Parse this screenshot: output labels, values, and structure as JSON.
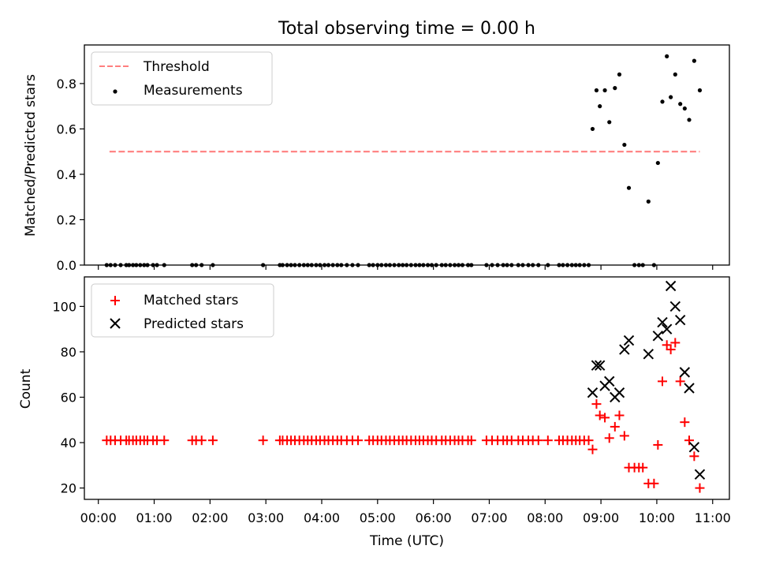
{
  "title": "Total observing time = 0.00 h",
  "chart_data": [
    {
      "type": "scatter",
      "title": "Total observing time = 0.00 h",
      "xlabel": "",
      "ylabel": "Matched/Predicted stars",
      "xlim": [
        -0.25,
        11.3
      ],
      "ylim": [
        0.0,
        0.97
      ],
      "yticks": [
        0.0,
        0.2,
        0.4,
        0.6,
        0.8
      ],
      "ytick_labels": [
        "0.0",
        "0.2",
        "0.4",
        "0.6",
        "0.8"
      ],
      "legend": "top-left",
      "series": [
        {
          "name": "Threshold",
          "kind": "dashed-line",
          "color": "#ff7f7f",
          "x": [
            0.2,
            10.77
          ],
          "y": [
            0.5,
            0.5
          ]
        },
        {
          "name": "Measurements",
          "kind": "dots",
          "color": "#000000",
          "x": [
            0.15,
            0.22,
            0.3,
            0.4,
            0.5,
            0.55,
            0.62,
            0.68,
            0.75,
            0.82,
            0.88,
            0.98,
            1.05,
            1.18,
            1.68,
            1.75,
            1.85,
            2.05,
            2.95,
            3.25,
            3.3,
            3.38,
            3.45,
            3.52,
            3.6,
            3.68,
            3.75,
            3.82,
            3.9,
            3.97,
            4.05,
            4.12,
            4.2,
            4.28,
            4.35,
            4.45,
            4.55,
            4.65,
            4.85,
            4.92,
            5.0,
            5.07,
            5.15,
            5.22,
            5.3,
            5.38,
            5.45,
            5.52,
            5.6,
            5.68,
            5.75,
            5.82,
            5.9,
            5.97,
            6.05,
            6.15,
            6.22,
            6.3,
            6.38,
            6.45,
            6.52,
            6.62,
            6.68,
            6.95,
            7.05,
            7.15,
            7.25,
            7.32,
            7.4,
            7.52,
            7.6,
            7.7,
            7.78,
            7.88,
            8.05,
            8.25,
            8.32,
            8.4,
            8.48,
            8.55,
            8.62,
            8.7,
            8.78,
            8.85,
            8.92,
            8.98,
            9.07,
            9.15,
            9.25,
            9.33,
            9.42,
            9.5,
            9.6,
            9.68,
            9.75,
            9.85,
            9.95,
            10.02,
            10.1,
            10.18,
            10.25,
            10.33,
            10.42,
            10.5,
            10.58,
            10.67,
            10.77
          ],
          "y": [
            0,
            0,
            0,
            0,
            0,
            0,
            0,
            0,
            0,
            0,
            0,
            0,
            0,
            0,
            0,
            0,
            0,
            0,
            0,
            0,
            0,
            0,
            0,
            0,
            0,
            0,
            0,
            0,
            0,
            0,
            0,
            0,
            0,
            0,
            0,
            0,
            0,
            0,
            0,
            0,
            0,
            0,
            0,
            0,
            0,
            0,
            0,
            0,
            0,
            0,
            0,
            0,
            0,
            0,
            0,
            0,
            0,
            0,
            0,
            0,
            0,
            0,
            0,
            0,
            0,
            0,
            0,
            0,
            0,
            0,
            0,
            0,
            0,
            0,
            0,
            0,
            0,
            0,
            0,
            0,
            0,
            0,
            0,
            0.6,
            0.77,
            0.7,
            0.77,
            0.63,
            0.78,
            0.84,
            0.53,
            0.34,
            0,
            0,
            0,
            0.28,
            0,
            0.45,
            0.72,
            0.92,
            0.74,
            0.84,
            0.71,
            0.69,
            0.64,
            0.9,
            0.77
          ]
        }
      ]
    },
    {
      "type": "scatter",
      "title": "",
      "xlabel": "Time (UTC)",
      "ylabel": "Count",
      "xlim": [
        -0.25,
        11.3
      ],
      "ylim": [
        15,
        113
      ],
      "yticks": [
        20,
        40,
        60,
        80,
        100
      ],
      "ytick_labels": [
        "20",
        "40",
        "60",
        "80",
        "100"
      ],
      "xticks": [
        0,
        1,
        2,
        3,
        4,
        5,
        6,
        7,
        8,
        9,
        10,
        11
      ],
      "xtick_labels": [
        "00:00",
        "01:00",
        "02:00",
        "03:00",
        "04:00",
        "05:00",
        "06:00",
        "07:00",
        "08:00",
        "09:00",
        "10:00",
        "11:00"
      ],
      "legend": "top-left",
      "series": [
        {
          "name": "Matched stars",
          "kind": "plus",
          "color": "#ff0000",
          "x": [
            0.15,
            0.22,
            0.3,
            0.4,
            0.5,
            0.55,
            0.62,
            0.68,
            0.75,
            0.82,
            0.88,
            0.98,
            1.05,
            1.18,
            1.68,
            1.75,
            1.85,
            2.05,
            2.95,
            3.25,
            3.3,
            3.38,
            3.45,
            3.52,
            3.6,
            3.68,
            3.75,
            3.82,
            3.9,
            3.97,
            4.05,
            4.12,
            4.2,
            4.28,
            4.35,
            4.45,
            4.55,
            4.65,
            4.85,
            4.92,
            5.0,
            5.07,
            5.15,
            5.22,
            5.3,
            5.38,
            5.45,
            5.52,
            5.6,
            5.68,
            5.75,
            5.82,
            5.9,
            5.97,
            6.05,
            6.15,
            6.22,
            6.3,
            6.38,
            6.45,
            6.52,
            6.62,
            6.68,
            6.95,
            7.05,
            7.15,
            7.25,
            7.32,
            7.4,
            7.52,
            7.6,
            7.7,
            7.78,
            7.88,
            8.05,
            8.25,
            8.32,
            8.4,
            8.48,
            8.55,
            8.62,
            8.7,
            8.78,
            8.85,
            8.92,
            8.98,
            9.07,
            9.15,
            9.25,
            9.33,
            9.42,
            9.5,
            9.6,
            9.68,
            9.75,
            9.85,
            9.95,
            10.02,
            10.1,
            10.18,
            10.25,
            10.33,
            10.42,
            10.5,
            10.58,
            10.67,
            10.77
          ],
          "y": [
            41,
            41,
            41,
            41,
            41,
            41,
            41,
            41,
            41,
            41,
            41,
            41,
            41,
            41,
            41,
            41,
            41,
            41,
            41,
            41,
            41,
            41,
            41,
            41,
            41,
            41,
            41,
            41,
            41,
            41,
            41,
            41,
            41,
            41,
            41,
            41,
            41,
            41,
            41,
            41,
            41,
            41,
            41,
            41,
            41,
            41,
            41,
            41,
            41,
            41,
            41,
            41,
            41,
            41,
            41,
            41,
            41,
            41,
            41,
            41,
            41,
            41,
            41,
            41,
            41,
            41,
            41,
            41,
            41,
            41,
            41,
            41,
            41,
            41,
            41,
            41,
            41,
            41,
            41,
            41,
            41,
            41,
            41,
            37,
            57,
            52,
            51,
            42,
            47,
            52,
            43,
            29,
            29,
            29,
            29,
            22,
            22,
            39,
            67,
            83,
            81,
            84,
            67,
            49,
            41,
            34,
            20
          ]
        },
        {
          "name": "Predicted stars",
          "kind": "x",
          "color": "#000000",
          "x": [
            8.85,
            8.92,
            8.98,
            9.07,
            9.15,
            9.25,
            9.33,
            9.42,
            9.5,
            9.85,
            10.02,
            10.1,
            10.18,
            10.25,
            10.33,
            10.42,
            10.5,
            10.58,
            10.67,
            10.77
          ],
          "y": [
            62,
            74,
            74,
            65,
            67,
            60,
            62,
            81,
            85,
            79,
            87,
            93,
            90,
            109,
            100,
            94,
            71,
            64,
            38,
            26
          ]
        }
      ]
    }
  ]
}
